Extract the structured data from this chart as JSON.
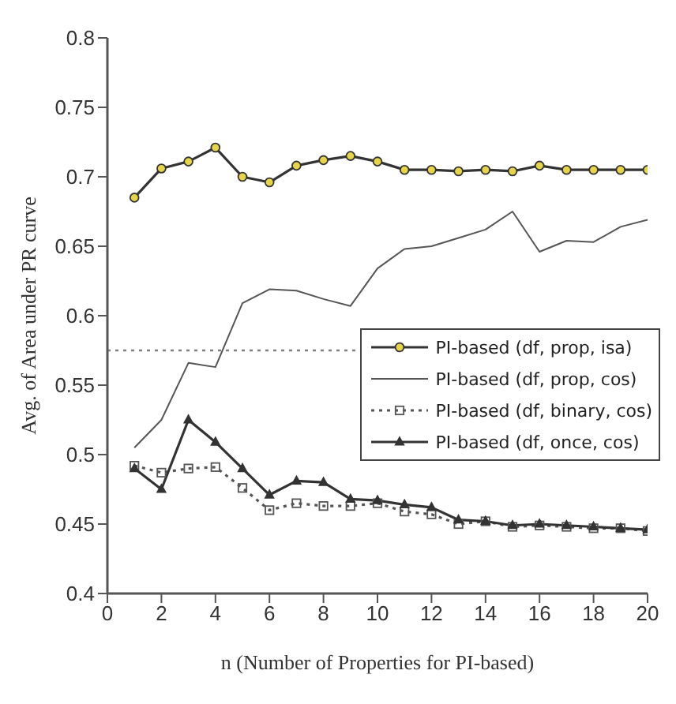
{
  "chart_data": {
    "type": "line",
    "xlabel": "n (Number of Properties for PI-based)",
    "ylabel": "Avg. of Area under PR curve",
    "x": [
      1,
      2,
      3,
      4,
      5,
      6,
      7,
      8,
      9,
      10,
      11,
      12,
      13,
      14,
      15,
      16,
      17,
      18,
      19,
      20
    ],
    "xlim": [
      0,
      20
    ],
    "xticks": [
      0,
      2,
      4,
      6,
      8,
      10,
      12,
      14,
      16,
      18,
      20
    ],
    "ylim": [
      0.4,
      0.8
    ],
    "yticks": [
      0.4,
      0.45,
      0.5,
      0.55,
      0.6,
      0.65,
      0.7,
      0.75,
      0.8
    ],
    "grid": false,
    "legend": "right",
    "ref_lines": [
      {
        "axis": "y",
        "value": 0.575,
        "color": "#808080",
        "line_style": "dotted"
      }
    ],
    "series": [
      {
        "name": "PI-based (df, prop, isa)",
        "color": "#333333",
        "marker": "circle",
        "line_style": "solid",
        "values": [
          0.685,
          0.706,
          0.711,
          0.721,
          0.7,
          0.696,
          0.708,
          0.712,
          0.715,
          0.711,
          0.705,
          0.705,
          0.704,
          0.705,
          0.704,
          0.708,
          0.705,
          0.705,
          0.705,
          0.705
        ]
      },
      {
        "name": "PI-based (df, prop, cos)",
        "color": "#555555",
        "marker": "none",
        "line_style": "solid",
        "values": [
          0.505,
          0.525,
          0.566,
          0.563,
          0.609,
          0.619,
          0.618,
          0.612,
          0.607,
          0.634,
          0.648,
          0.65,
          0.656,
          0.662,
          0.675,
          0.646,
          0.654,
          0.653,
          0.664,
          0.669
        ]
      },
      {
        "name": "PI-based (df, binary, cos)",
        "color": "#555555",
        "marker": "square",
        "line_style": "dotted",
        "values": [
          0.492,
          0.487,
          0.49,
          0.491,
          0.476,
          0.46,
          0.465,
          0.463,
          0.463,
          0.465,
          0.459,
          0.457,
          0.45,
          0.452,
          0.448,
          0.449,
          0.448,
          0.447,
          0.447,
          0.445
        ]
      },
      {
        "name": "PI-based (df, once, cos)",
        "color": "#333333",
        "marker": "triangle",
        "line_style": "solid",
        "values": [
          0.49,
          0.475,
          0.525,
          0.509,
          0.49,
          0.471,
          0.481,
          0.48,
          0.468,
          0.467,
          0.464,
          0.462,
          0.453,
          0.452,
          0.449,
          0.45,
          0.449,
          0.448,
          0.447,
          0.446
        ]
      }
    ]
  }
}
